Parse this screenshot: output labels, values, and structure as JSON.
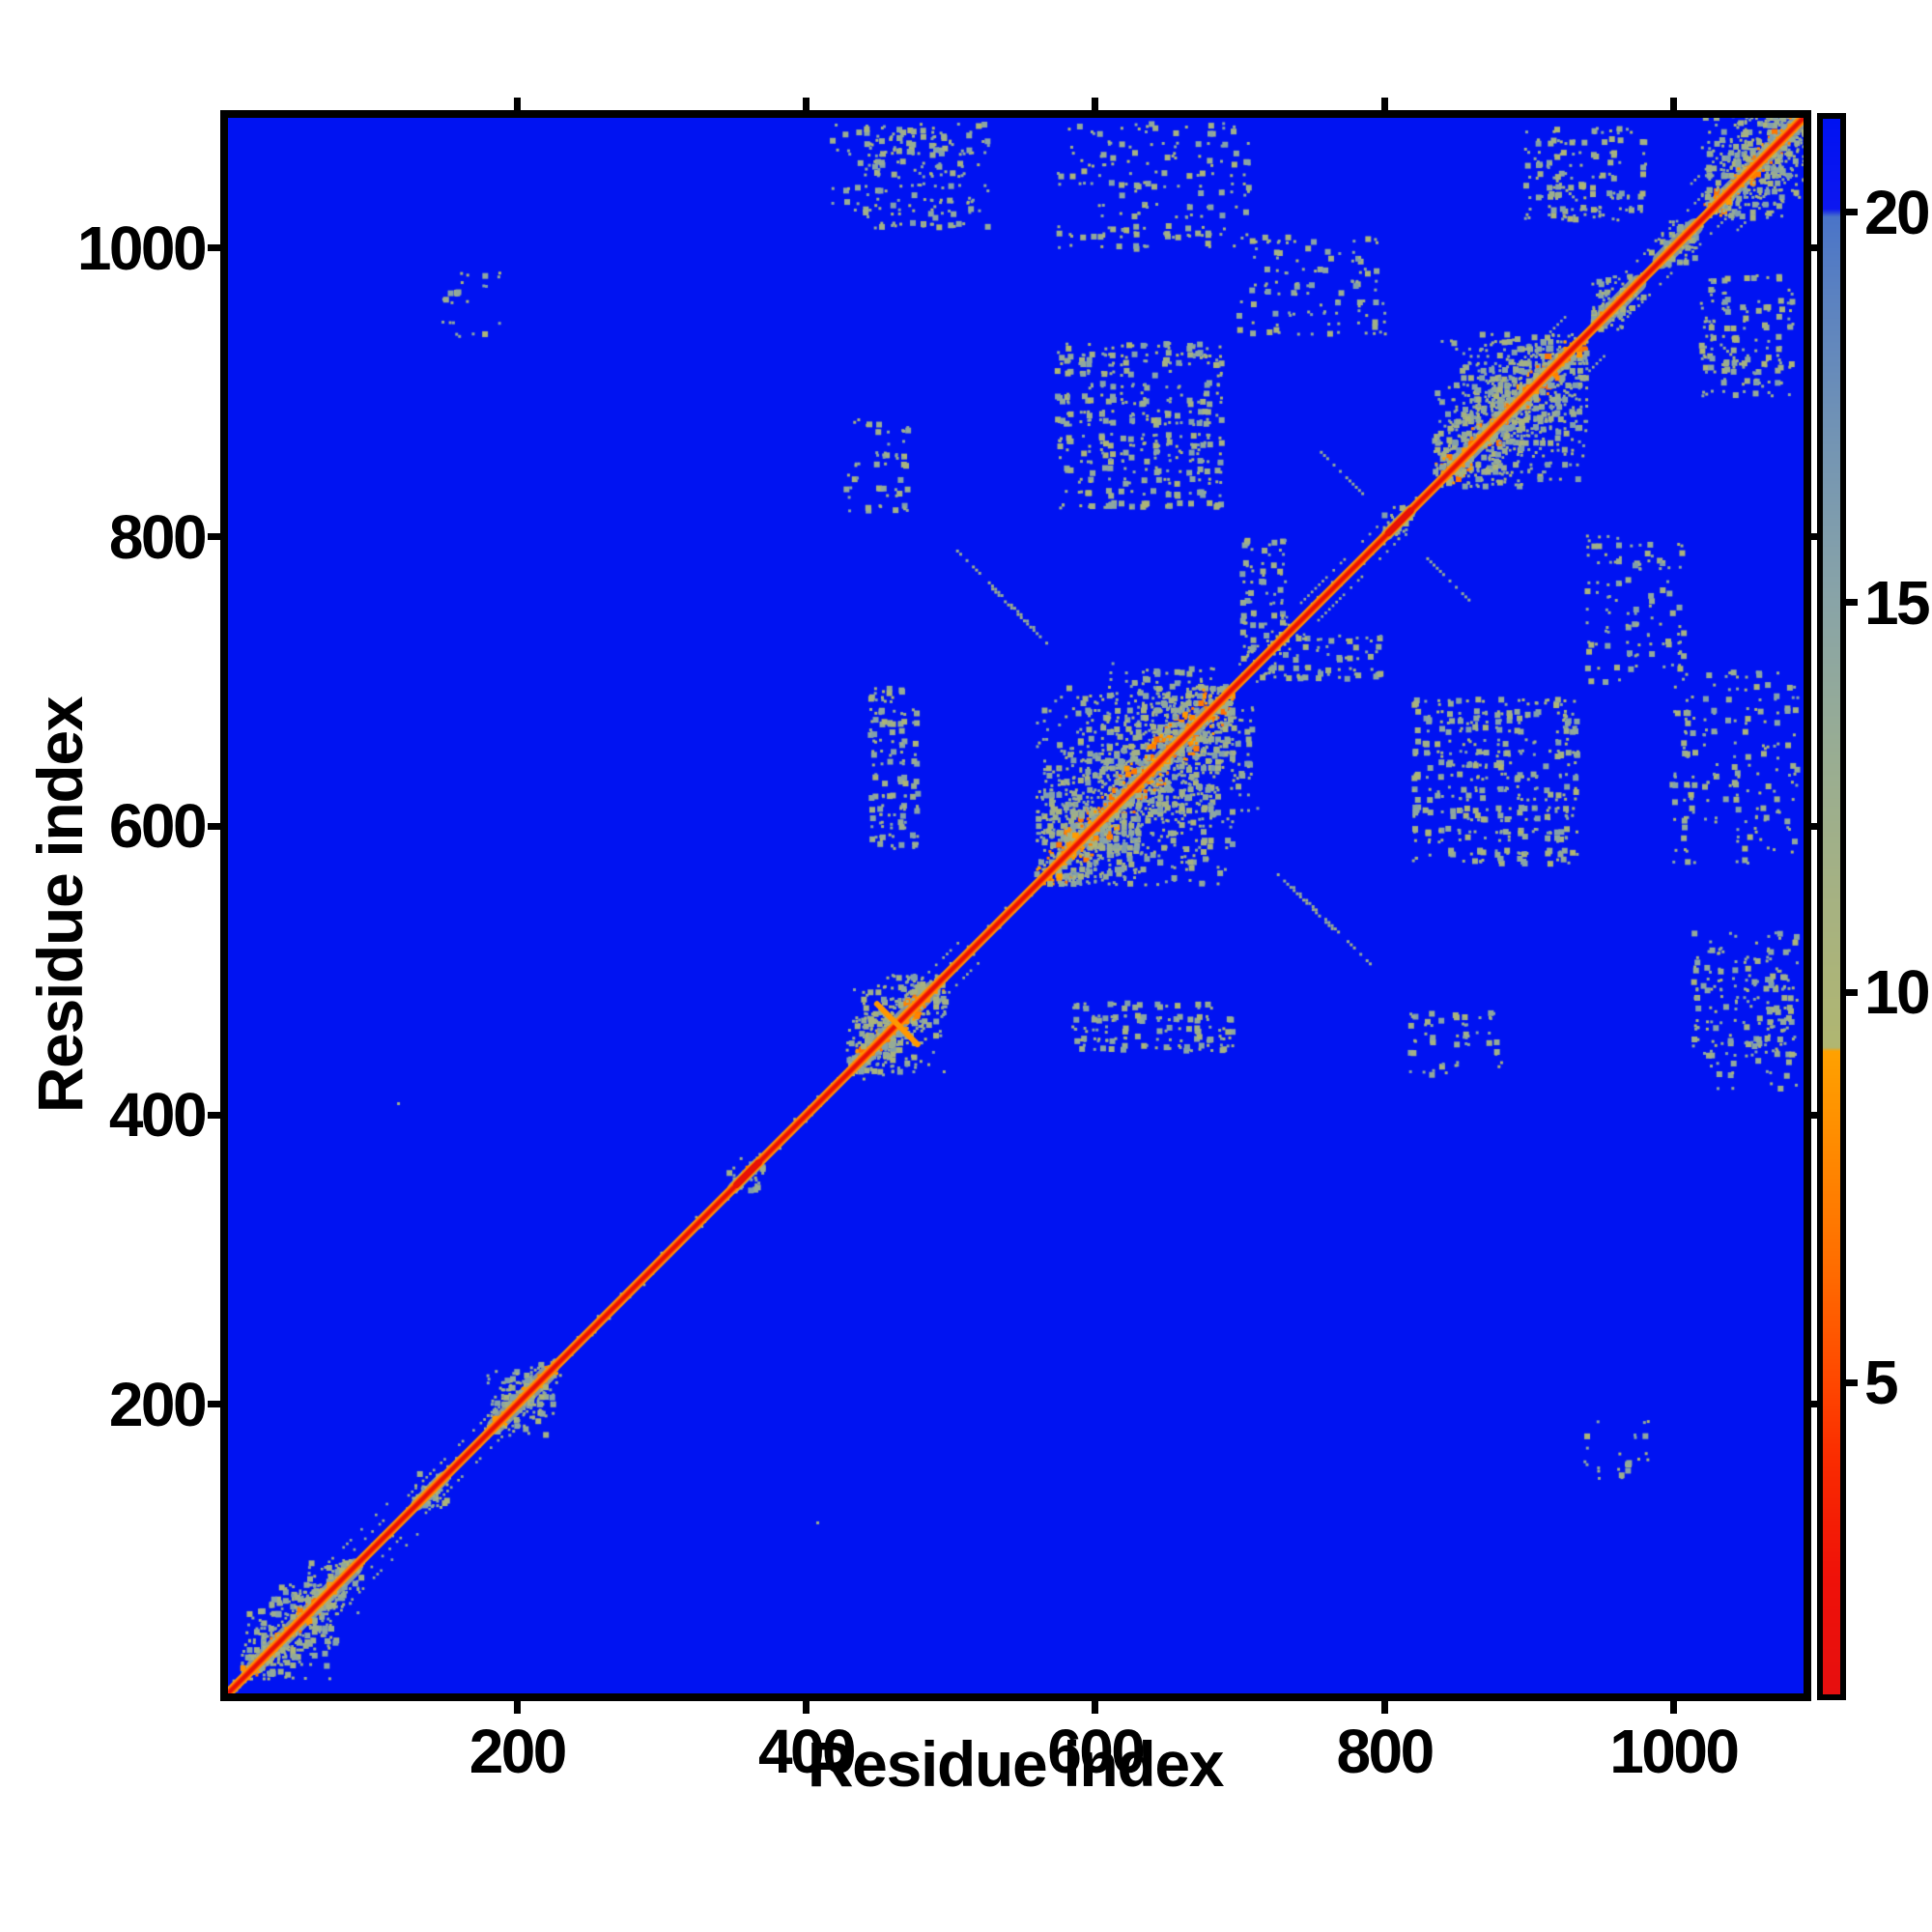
{
  "figure": {
    "background": "#ffffff",
    "frame_color": "#000000"
  },
  "axes": {
    "xlabel": "Residue index",
    "ylabel": "Residue index",
    "x_ticks": [
      200,
      400,
      600,
      800,
      1000
    ],
    "y_ticks": [
      200,
      400,
      600,
      800,
      1000
    ],
    "x_range": [
      0,
      1090
    ],
    "y_range": [
      0,
      1090
    ]
  },
  "colorbar": {
    "ticks": [
      20,
      15,
      10,
      5
    ],
    "vmin": 1.0,
    "vmax": 21.2
  },
  "chart_data": {
    "type": "heatmap",
    "title": "",
    "xlabel": "Residue index",
    "ylabel": "Residue index",
    "x_range": [
      0,
      1090
    ],
    "y_range": [
      0,
      1090
    ],
    "value_range": [
      1.0,
      21.2
    ],
    "colorbar_ticks": [
      5,
      10,
      15,
      20
    ],
    "clip_color": "#0013f2",
    "colormap_stops": [
      {
        "v": 1.0,
        "c": "#e60f0f"
      },
      {
        "v": 2.5,
        "c": "#ef1109"
      },
      {
        "v": 4.0,
        "c": "#fa2b00"
      },
      {
        "v": 5.0,
        "c": "#ff4700"
      },
      {
        "v": 6.5,
        "c": "#ff6d00"
      },
      {
        "v": 8.0,
        "c": "#ff8a00"
      },
      {
        "v": 9.25,
        "c": "#ffa100"
      },
      {
        "v": 9.3,
        "c": "#b0b671"
      },
      {
        "v": 11.0,
        "c": "#a7b280"
      },
      {
        "v": 13.0,
        "c": "#99ad92"
      },
      {
        "v": 15.0,
        "c": "#89a4a7"
      },
      {
        "v": 17.0,
        "c": "#7495b3"
      },
      {
        "v": 19.0,
        "c": "#5a81c1"
      },
      {
        "v": 19.95,
        "c": "#4a74c8"
      },
      {
        "v": 20.05,
        "c": "#0d17f0"
      },
      {
        "v": 21.2,
        "c": "#0012f2"
      }
    ],
    "diagonal_value": 1.0,
    "diagonal_line_colors": [
      "#ff8f00",
      "#ff4400",
      "#e81206"
    ],
    "diagonal_clusters": [
      {
        "center": 42,
        "half_width": 26
      },
      {
        "center": 74,
        "half_width": 15
      },
      {
        "center": 140,
        "half_width": 10
      },
      {
        "center": 203,
        "half_width": 20
      },
      {
        "center": 358,
        "half_width": 9
      },
      {
        "center": 462,
        "half_width": 28
      },
      {
        "center": 628,
        "half_width": 55
      },
      {
        "center": 810,
        "half_width": 9
      },
      {
        "center": 888,
        "half_width": 42
      },
      {
        "center": 962,
        "half_width": 15
      },
      {
        "center": 1003,
        "half_width": 13
      },
      {
        "center": 1058,
        "half_width": 30
      }
    ],
    "off_diagonal_patches": [
      {
        "x": [
          575,
          690
        ],
        "y": [
          820,
          935
        ],
        "density": 0.1
      },
      {
        "x": [
          445,
          478
        ],
        "y": [
          585,
          700
        ],
        "density": 0.12
      },
      {
        "x": [
          420,
          525
        ],
        "y": [
          1015,
          1088
        ],
        "density": 0.06
      },
      {
        "x": [
          575,
          705
        ],
        "y": [
          1000,
          1090
        ],
        "density": 0.045
      },
      {
        "x": [
          940,
          1010
        ],
        "y": [
          700,
          800
        ],
        "density": 0.05
      },
      {
        "x": [
          1020,
          1085
        ],
        "y": [
          898,
          985
        ],
        "density": 0.08
      },
      {
        "x": [
          818,
          880
        ],
        "y": [
          428,
          475
        ],
        "density": 0.06
      },
      {
        "x": [
          1022,
          1085
        ],
        "y": [
          442,
          495
        ],
        "density": 0.055
      },
      {
        "x": [
          703,
          737
        ],
        "y": [
          707,
          800
        ],
        "density": 0.08
      },
      {
        "x": [
          148,
          185
        ],
        "y": [
          940,
          982
        ],
        "density": 0.05
      },
      {
        "x": [
          700,
          722
        ],
        "y": [
          612,
          692
        ],
        "density": 0.05
      }
    ],
    "antidiagonal_streaks": [
      {
        "cx": 765,
        "cy": 530,
        "len": 55
      },
      {
        "cx": 548,
        "cy": 745,
        "len": 38
      },
      {
        "cx": 918,
        "cy": 1048,
        "len": 45
      },
      {
        "cx": 845,
        "cy": 770,
        "len": 30
      }
    ],
    "parallel_streaks": [
      {
        "range": [
          25,
          215
        ],
        "offset": 12
      },
      {
        "range": [
          30,
          110
        ],
        "offset": 21
      },
      {
        "range": [
          430,
          505
        ],
        "offset": 14
      },
      {
        "range": [
          595,
          680
        ],
        "offset": 22
      },
      {
        "range": [
          700,
          800
        ],
        "offset": 12
      },
      {
        "range": [
          845,
          930
        ],
        "offset": 27
      },
      {
        "range": [
          940,
          1085
        ],
        "offset": 16
      },
      {
        "range": [
          1010,
          1072
        ],
        "offset": 32
      }
    ],
    "diagonal_cross": {
      "center": 463,
      "len": 28,
      "color": "#ff9800"
    },
    "red_hotspots": [
      [
        352,
        367
      ],
      [
        803,
        818
      ]
    ],
    "isolated_dots": [
      [
        216,
        196
      ],
      [
        118,
        408
      ]
    ]
  }
}
